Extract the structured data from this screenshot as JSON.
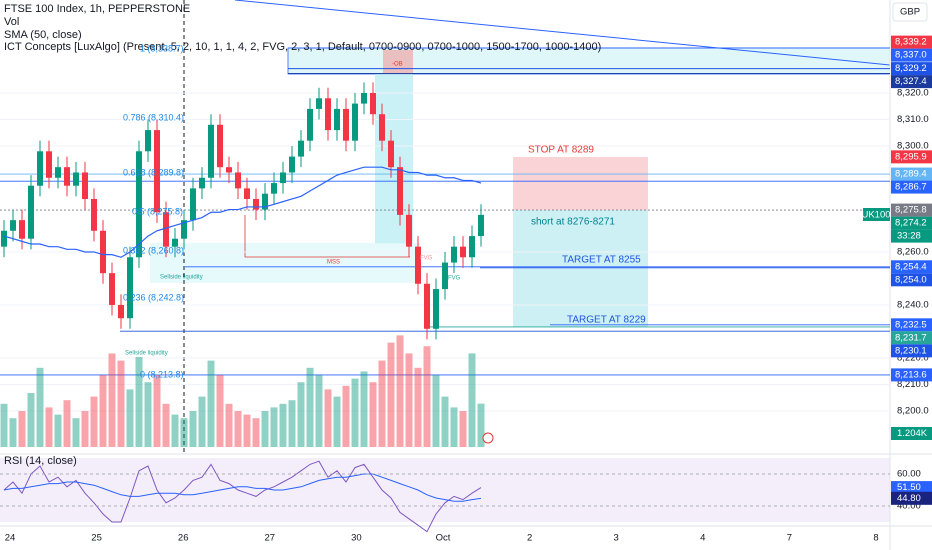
{
  "legend": {
    "symbol": "FTSE 100 Index, 1h, PEPPERSTONE",
    "volume": "Vol",
    "sma": "SMA (50, close)",
    "ict": "ICT Concepts [LuxAlgo] (Present, 5, 2, 10, 1, 1, 4, 2, FVG, 2, 3, 1, Default, 0700-0900, 0700-1000, 1500-1700, 1000-1400)",
    "rsi": "RSI (14, close)"
  },
  "currency": "GBP",
  "symbol_tag": "UK100",
  "countdown": "33:28",
  "position": {
    "stop": "STOP AT 8289",
    "entry": "short at 8276-8271",
    "target1": "TARGET AT 8255",
    "target2": "TARGET AT 8229"
  },
  "fib_labels": [
    "1 (8,338.7)",
    "0.786 (8,310.4)",
    "0.618 (8,289.8)",
    "0.5 (8,275.8)",
    "0.382 (8,260.8)",
    "0.236 (8,242.8)",
    "0 (8,213.8)"
  ],
  "annotations": [
    "-OB",
    "MSS",
    "FVG",
    "FVG",
    "Sellside liquidity",
    "Sellside liquidity"
  ],
  "dates": [
    "24",
    "25",
    "26",
    "27",
    "30",
    "Oct",
    "2",
    "3",
    "4",
    "7",
    "8"
  ],
  "chart_data": {
    "type": "candlestick",
    "ylim": [
      8184.5,
      8355.1
    ],
    "yticks": [
      {
        "value": 8320,
        "label": "8,320.0"
      },
      {
        "value": 8310,
        "label": "8,310.0"
      },
      {
        "value": 8300,
        "label": "8,300.0"
      },
      {
        "value": 8260,
        "label": "8,260.0"
      },
      {
        "value": 8240,
        "label": "8,240.0"
      },
      {
        "value": 8220,
        "label": "8,220.0"
      },
      {
        "value": 8210,
        "label": "8,210.0"
      },
      {
        "value": 8200,
        "label": "8,200.0"
      }
    ],
    "up_color": "#089981",
    "down_color": "#f23645",
    "open": [
      8262,
      8268,
      8272,
      8265,
      8285,
      8298,
      8288,
      8292,
      8285,
      8290,
      8280,
      8268,
      8252,
      8240,
      8235,
      8258,
      8298,
      8306,
      8275,
      8262,
      8265,
      8272,
      8284,
      8288,
      8308,
      8292,
      8290,
      8284,
      8280,
      8276,
      8282,
      8286,
      8290,
      8296,
      8302,
      8314,
      8318,
      8306,
      8314,
      8302,
      8316,
      8320,
      8312,
      8302,
      8292,
      8274,
      8262,
      8248,
      8231,
      8246,
      8256,
      8262,
      8258,
      8266
    ],
    "high": [
      8272,
      8276,
      8276,
      8289,
      8302,
      8302,
      8296,
      8296,
      8294,
      8294,
      8284,
      8272,
      8256,
      8244,
      8262,
      8302,
      8310,
      8310,
      8279,
      8269,
      8276,
      8288,
      8292,
      8312,
      8312,
      8296,
      8294,
      8288,
      8284,
      8286,
      8290,
      8294,
      8300,
      8306,
      8318,
      8322,
      8322,
      8318,
      8318,
      8320,
      8324,
      8324,
      8316,
      8306,
      8296,
      8278,
      8266,
      8252,
      8250,
      8260,
      8266,
      8266,
      8270,
      8278
    ],
    "low": [
      8258,
      8264,
      8261,
      8261,
      8281,
      8284,
      8284,
      8281,
      8281,
      8276,
      8264,
      8248,
      8236,
      8231,
      8231,
      8254,
      8294,
      8271,
      8258,
      8258,
      8261,
      8268,
      8280,
      8284,
      8288,
      8286,
      8280,
      8276,
      8272,
      8272,
      8278,
      8282,
      8286,
      8292,
      8298,
      8310,
      8302,
      8302,
      8298,
      8298,
      8312,
      8308,
      8298,
      8288,
      8270,
      8258,
      8244,
      8227,
      8227,
      8242,
      8252,
      8254,
      8254,
      8262
    ],
    "close": [
      8268,
      8272,
      8265,
      8285,
      8298,
      8288,
      8292,
      8285,
      8290,
      8280,
      8268,
      8252,
      8240,
      8235,
      8258,
      8298,
      8306,
      8275,
      8262,
      8265,
      8272,
      8284,
      8288,
      8308,
      8292,
      8290,
      8284,
      8280,
      8276,
      8282,
      8286,
      8290,
      8296,
      8302,
      8314,
      8318,
      8306,
      8314,
      8302,
      8316,
      8320,
      8312,
      8302,
      8292,
      8274,
      8262,
      8248,
      8231,
      8246,
      8256,
      8262,
      8258,
      8266,
      8274
    ],
    "sma": {
      "name": "SMA",
      "color": "#2962ff",
      "values": [
        8266,
        8265,
        8264,
        8263,
        8263,
        8262,
        8262,
        8261,
        8261,
        8260,
        8260,
        8259,
        8259,
        8258,
        8260,
        8263,
        8266,
        8268,
        8269,
        8270,
        8271,
        8272,
        8273,
        8275,
        8275,
        8276,
        8276,
        8277,
        8277,
        8277,
        8278,
        8279,
        8280,
        8281,
        8283,
        8285,
        8287,
        8289,
        8290,
        8291,
        8292,
        8292,
        8292,
        8291,
        8291,
        8290,
        8290,
        8289,
        8289,
        8288,
        8288,
        8287,
        8287,
        8286
      ]
    },
    "volume": [
      1.2,
      0.8,
      1.0,
      1.5,
      2.2,
      1.1,
      0.9,
      1.3,
      0.8,
      1.0,
      1.4,
      2.0,
      2.6,
      2.4,
      1.6,
      2.5,
      1.8,
      2.0,
      1.2,
      0.9,
      0.8,
      1.0,
      1.4,
      2.4,
      2.0,
      1.2,
      1.0,
      0.9,
      0.8,
      1.0,
      1.1,
      1.2,
      1.3,
      1.8,
      2.2,
      2.0,
      1.6,
      1.4,
      1.7,
      1.9,
      2.1,
      1.8,
      2.4,
      2.9,
      3.1,
      2.6,
      2.2,
      2.8,
      2.0,
      1.4,
      1.1,
      1.0,
      2.6,
      1.204
    ],
    "volume_label": "1.204K",
    "rsi": {
      "name": "RSI",
      "color": "#7e57c2",
      "values": [
        50,
        55,
        48,
        60,
        65,
        55,
        58,
        52,
        56,
        48,
        42,
        35,
        30,
        30,
        45,
        62,
        65,
        50,
        42,
        45,
        50,
        56,
        58,
        66,
        56,
        54,
        50,
        48,
        46,
        50,
        52,
        55,
        58,
        62,
        66,
        68,
        58,
        62,
        55,
        64,
        66,
        58,
        50,
        45,
        36,
        32,
        28,
        24,
        35,
        42,
        46,
        44,
        48,
        51.5
      ]
    },
    "rsi_ma": {
      "name": "RSI MA",
      "color": "#2962ff",
      "values": [
        50,
        51,
        51,
        52,
        53,
        54,
        54,
        55,
        55,
        54,
        53,
        51,
        49,
        47,
        46,
        46,
        47,
        48,
        48,
        48,
        47,
        47,
        48,
        49,
        50,
        51,
        52,
        52,
        51,
        51,
        50,
        50,
        51,
        52,
        54,
        56,
        57,
        58,
        58,
        59,
        60,
        60,
        58,
        56,
        54,
        52,
        50,
        47,
        45,
        44,
        43,
        43,
        44,
        44.8
      ]
    },
    "rsi_ylim": [
      30,
      71.25
    ],
    "rsi_yticks": [
      {
        "value": 60,
        "label": "60.00"
      },
      {
        "value": 40,
        "label": "40.00"
      }
    ],
    "rsi_tags": [
      {
        "value": 51.5,
        "label": "51.50",
        "color": "#2962ff"
      },
      {
        "value": 44.8,
        "label": "44.80",
        "color": "#1a237e"
      }
    ],
    "price_tags": [
      {
        "value": 8339.2,
        "label": "8,339.2",
        "color": "#f23645"
      },
      {
        "value": 8337,
        "label": "8,337.0",
        "color": "#2962ff"
      },
      {
        "value": 8329.2,
        "label": "8,329.2",
        "color": "#1e53e5"
      },
      {
        "value": 8327.4,
        "label": "8,327.4",
        "color": "#1a3a9e"
      },
      {
        "value": 8295.9,
        "label": "8,295.9",
        "color": "#f23645"
      },
      {
        "value": 8289.4,
        "label": "8,289.4",
        "color": "#64b5f6"
      },
      {
        "value": 8286.7,
        "label": "8,286.7",
        "color": "#2962ff"
      },
      {
        "value": 8275.8,
        "label": "8,275.8",
        "color": "#787b86"
      },
      {
        "value": 8274.2,
        "label": "8,274.2",
        "color": "#089981"
      },
      {
        "value": 8254.4,
        "label": "8,254.4",
        "color": "#2962ff"
      },
      {
        "value": 8254,
        "label": "8,254.0",
        "color": "#1e53e5"
      },
      {
        "value": 8232.5,
        "label": "8,232.5",
        "color": "#2962ff"
      },
      {
        "value": 8231.7,
        "label": "8,231.7",
        "color": "#26a69a"
      },
      {
        "value": 8230.1,
        "label": "8,230.1",
        "color": "#1e53e5"
      },
      {
        "value": 8213.6,
        "label": "8,213.6",
        "color": "#2962ff"
      }
    ]
  }
}
